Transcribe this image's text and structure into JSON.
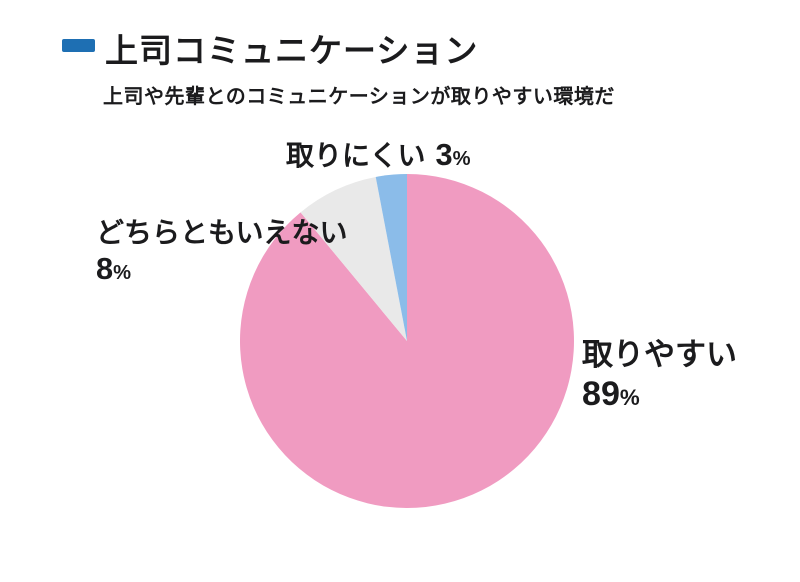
{
  "header": {
    "title": "上司コミュニケーション",
    "subtitle": "上司や先輩とのコミュニケーションが取りやすい環境だ",
    "dash_color": "#1E6FB3"
  },
  "chart_data": {
    "type": "pie",
    "title": "上司コミュニケーション",
    "question": "上司や先輩とのコミュニケーションが取りやすい環境だ",
    "unit": "%",
    "direction": "clockwise",
    "start_angle": "top",
    "legend_position": "labels-outside",
    "slices": [
      {
        "label": "取りやすい",
        "value": 89,
        "color": "#F09BC1"
      },
      {
        "label": "どちらともいえない",
        "value": 8,
        "color": "#E9E9E9"
      },
      {
        "label": "取りにくい",
        "value": 3,
        "color": "#8BBCE9"
      }
    ]
  }
}
